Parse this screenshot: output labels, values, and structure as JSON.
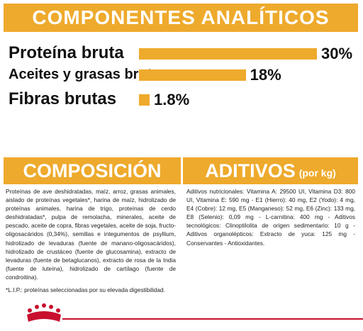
{
  "header": {
    "title": "COMPONENTES ANALÍTICOS"
  },
  "chart_data": {
    "type": "bar",
    "orientation": "horizontal",
    "color": "#eeaa2c",
    "categories": [
      "Proteína bruta",
      "Aceites y grasas brutos",
      "Fibras brutas"
    ],
    "values": [
      30,
      18,
      1.8
    ],
    "value_labels": [
      "30%",
      "18%",
      "1.8%"
    ]
  },
  "composition": {
    "title": "COMPOSICIÓN",
    "text": "Proteínas de ave deshidratadas, maíz, arroz, grasas animales, aislado de proteínas vegetales*, harina de maíz, hidrolizado de proteínas animales, harina de trigo, proteínas de cerdo deshidratadas*, pulpa de remolacha, minerales, aceite de pescado, aceite de copra, fibras vegetales, aceite de soja, fructo-oligosacáridos (0,34%), semillas e integumentos de psyllium, hidrolizado de levaduras (fuente de manano-oligosacáridos), hidrolizado de crustáceo (fuente de glucosamina), extracto de levaduras (fuente de betaglucanos), extracto de rosa de la India (fuente de luteína), hidrolizado de cartílago (fuente de condroitina).",
    "note": "*L.I.P.: proteínas seleccionadas por su elevada digestibilidad."
  },
  "additives": {
    "title": "ADITIVOS",
    "subtitle": "(por kg)",
    "text": "Aditivos nutricionales: Vitamina A: 29500 UI, Vitamina D3: 800 UI, Vitamina E: 590 mg - E1 (Hierro): 40 mg, E2 (Yodo): 4 mg, E4 (Cobre): 12 mg, E5 (Manganeso): 52 mg, E6 (Zinc): 133 mg, E8 (Selenio): 0,09 mg - L-carnitina: 400 mg - Aditivos tecnológicos: Clinoptilolita de origen sedimentario: 10 g - Aditivos organolépticos: Extracto de yuca: 125 mg - Conservantes - Antioxidantes."
  }
}
